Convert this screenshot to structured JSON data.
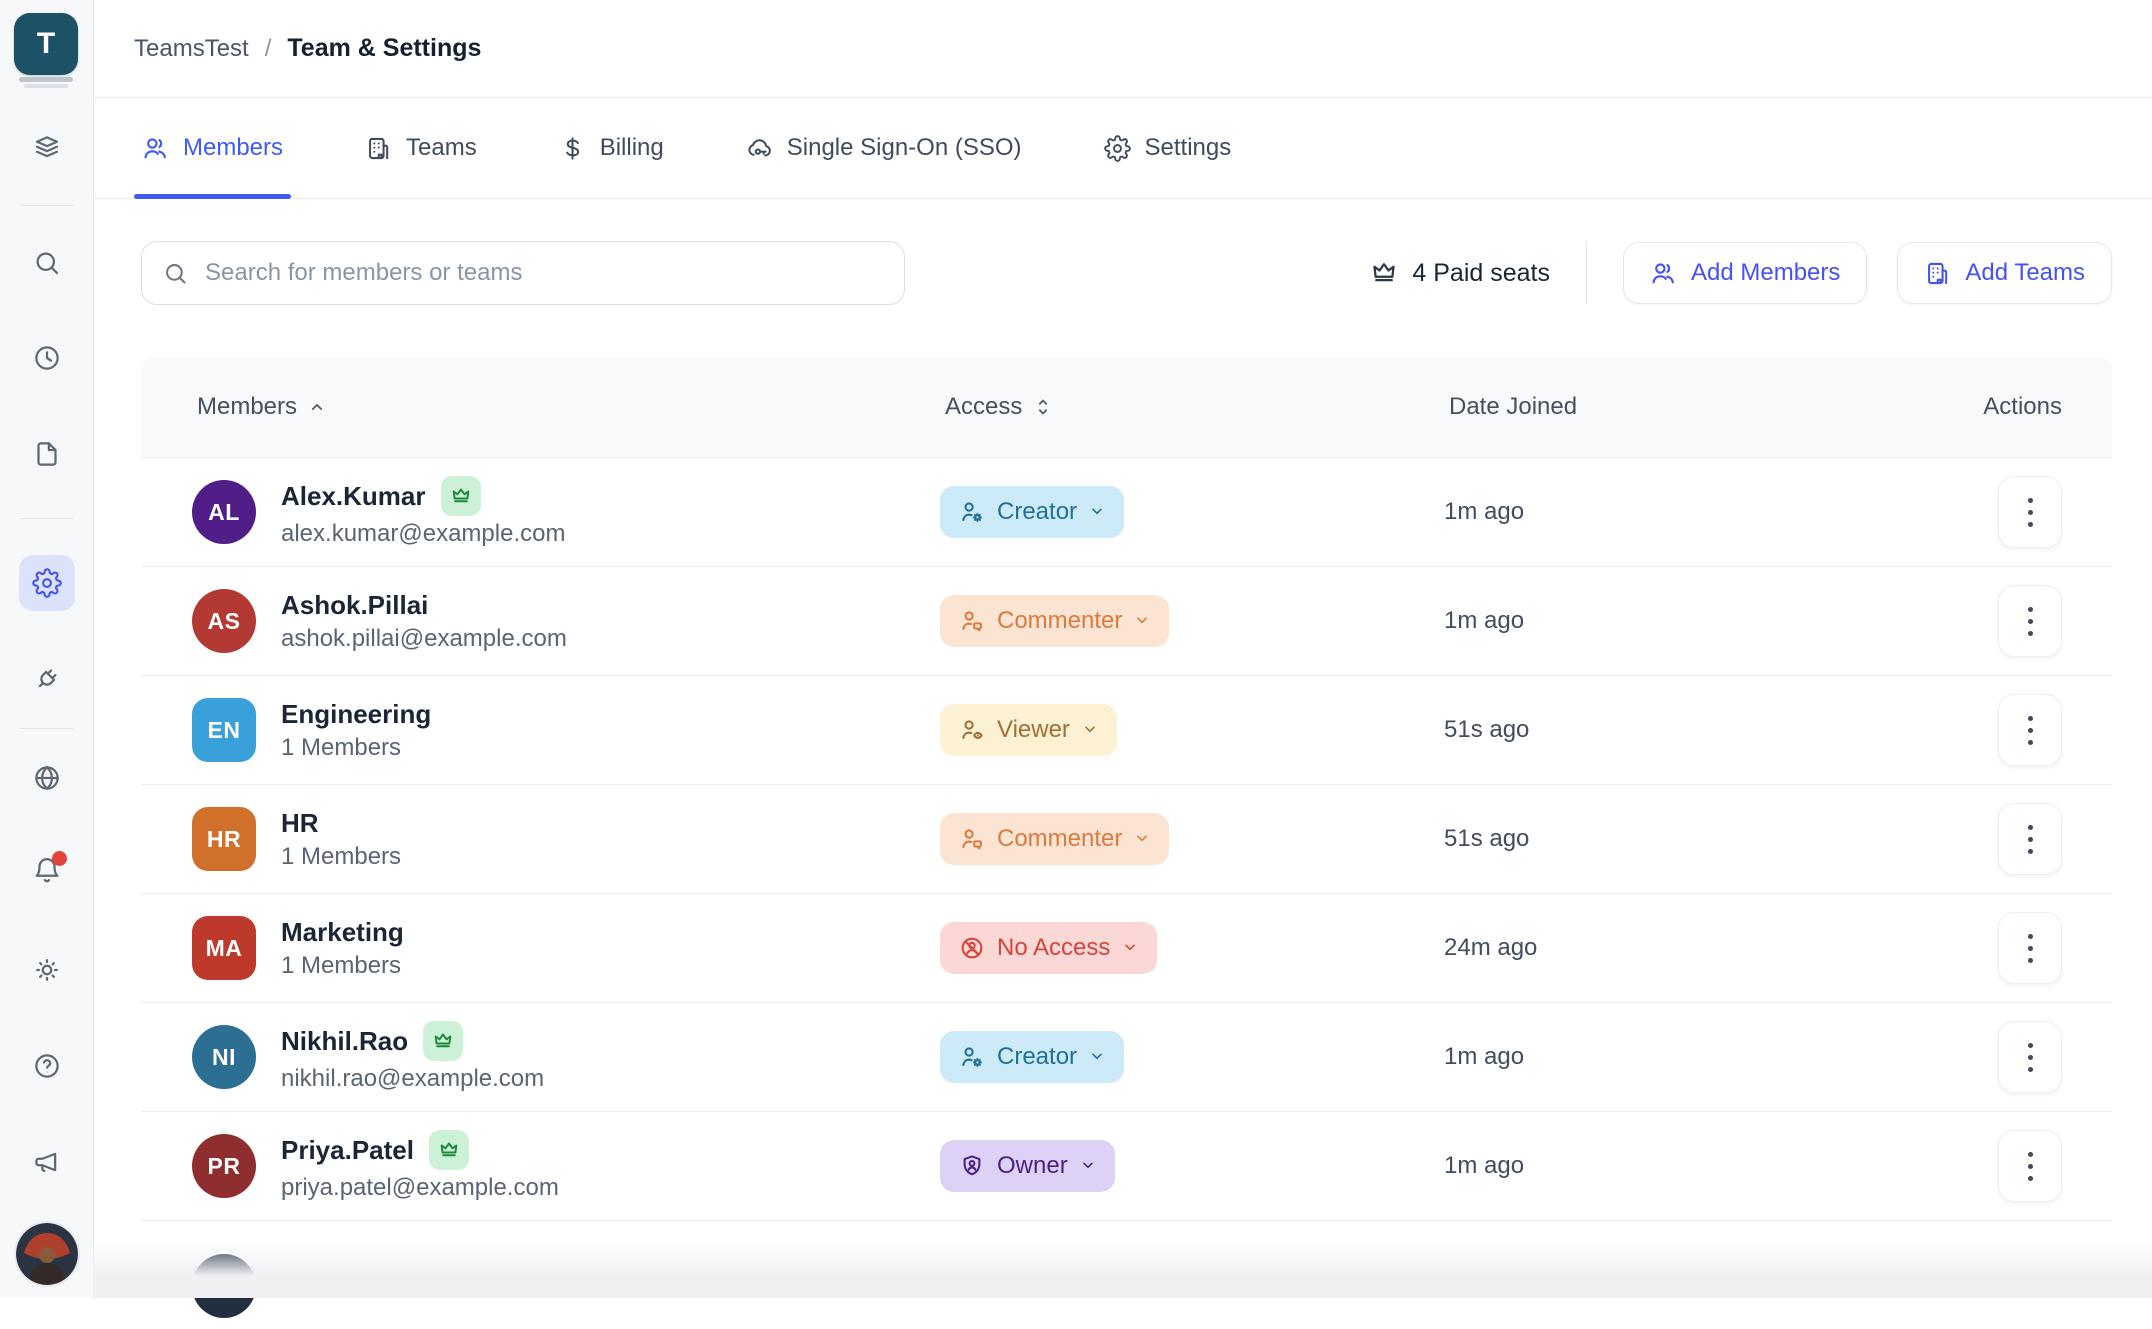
{
  "workspace": {
    "logo_letter": "T"
  },
  "breadcrumb": {
    "project": "TeamsTest",
    "separator": "/",
    "page": "Team & Settings"
  },
  "tabs": [
    {
      "label": "Members",
      "active": true
    },
    {
      "label": "Teams",
      "active": false
    },
    {
      "label": "Billing",
      "active": false
    },
    {
      "label": "Single Sign-On (SSO)",
      "active": false
    },
    {
      "label": "Settings",
      "active": false
    }
  ],
  "toolbar": {
    "search_placeholder": "Search for members or teams",
    "paid_seats": "4 Paid seats",
    "add_members_label": "Add Members",
    "add_teams_label": "Add Teams"
  },
  "colors": {
    "accent_tab": "#3d5af6",
    "accent_button": "#4452f0",
    "sidebar_active_bg": "#dde2fb",
    "crown_badge_bg": "#cdf1d6",
    "crown_badge_fg": "#1f8a3c",
    "notification_dot": "#e2443a",
    "logo_bg": "#1d5166"
  },
  "access_styles": {
    "creator": {
      "bg": "#cdeaf9",
      "fg": "#1f7099"
    },
    "commenter": {
      "bg": "#fce4d2",
      "fg": "#da7a3e"
    },
    "viewer": {
      "bg": "#fcf1d3",
      "fg": "#a06f36"
    },
    "no_access": {
      "bg": "#fbd8d5",
      "fg": "#d5453c"
    },
    "owner": {
      "bg": "#ddd2f5",
      "fg": "#4c1f86"
    }
  },
  "table": {
    "columns": [
      {
        "label": "Members",
        "sort": "asc"
      },
      {
        "label": "Access",
        "sort": "both"
      },
      {
        "label": "Date Joined",
        "sort": null
      },
      {
        "label": "Actions",
        "sort": null
      }
    ],
    "rows": [
      {
        "initials": "AL",
        "avatar_color": "#511e87",
        "avatar_shape": "circle",
        "name": "Alex.Kumar",
        "crown": true,
        "subtitle": "alex.kumar@example.com",
        "access": "Creator",
        "access_key": "creator",
        "date_joined": "1m ago"
      },
      {
        "initials": "AS",
        "avatar_color": "#b23a33",
        "avatar_shape": "circle",
        "name": "Ashok.Pillai",
        "crown": false,
        "subtitle": "ashok.pillai@example.com",
        "access": "Commenter",
        "access_key": "commenter",
        "date_joined": "1m ago"
      },
      {
        "initials": "EN",
        "avatar_color": "#3aa0d9",
        "avatar_shape": "square",
        "name": "Engineering",
        "crown": false,
        "subtitle": "1 Members",
        "access": "Viewer",
        "access_key": "viewer",
        "date_joined": "51s ago"
      },
      {
        "initials": "HR",
        "avatar_color": "#d1702b",
        "avatar_shape": "square",
        "name": "HR",
        "crown": false,
        "subtitle": "1 Members",
        "access": "Commenter",
        "access_key": "commenter",
        "date_joined": "51s ago"
      },
      {
        "initials": "MA",
        "avatar_color": "#bd392c",
        "avatar_shape": "square",
        "name": "Marketing",
        "crown": false,
        "subtitle": "1 Members",
        "access": "No Access",
        "access_key": "no_access",
        "date_joined": "24m ago"
      },
      {
        "initials": "NI",
        "avatar_color": "#2d6e93",
        "avatar_shape": "circle",
        "name": "Nikhil.Rao",
        "crown": true,
        "subtitle": "nikhil.rao@example.com",
        "access": "Creator",
        "access_key": "creator",
        "date_joined": "1m ago"
      },
      {
        "initials": "PR",
        "avatar_color": "#8e2e2e",
        "avatar_shape": "circle",
        "name": "Priya.Patel",
        "crown": true,
        "subtitle": "priya.patel@example.com",
        "access": "Owner",
        "access_key": "owner",
        "date_joined": "1m ago"
      },
      {
        "initials": "",
        "avatar_color": "#232e3f",
        "avatar_shape": "circle",
        "partial": true
      }
    ]
  },
  "sidebar_icons": [
    "layers-icon",
    "search-icon",
    "history-icon",
    "document-icon",
    "settings-icon",
    "plug-icon",
    "globe-icon",
    "notifications-icon",
    "theme-icon",
    "help-icon",
    "announcements-icon"
  ]
}
